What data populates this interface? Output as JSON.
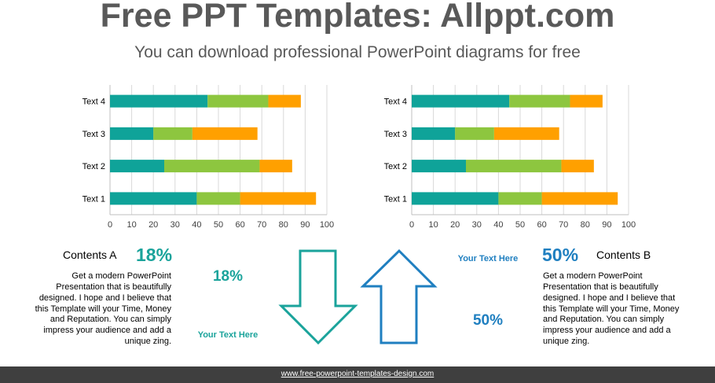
{
  "header": {
    "title": "Free PPT Templates: Allppt.com",
    "subtitle": "You can download professional PowerPoint diagrams for free"
  },
  "colors": {
    "series1": "#0fa399",
    "series2": "#8dc63f",
    "series3": "#ffa000",
    "teal": "#1aa39b",
    "blue": "#1f7fc0"
  },
  "chart_data": [
    {
      "type": "bar",
      "orientation": "horizontal",
      "stacked": true,
      "categories": [
        "Text 1",
        "Text 2",
        "Text 3",
        "Text 4"
      ],
      "series": [
        {
          "values": [
            40,
            25,
            20,
            45
          ]
        },
        {
          "values": [
            20,
            44,
            18,
            28
          ]
        },
        {
          "values": [
            35,
            15,
            30,
            15
          ]
        }
      ],
      "xlim": [
        0,
        100
      ],
      "xticks": [
        0,
        10,
        20,
        30,
        40,
        50,
        60,
        70,
        80,
        90,
        100
      ],
      "grid": true,
      "colors": [
        "#0fa399",
        "#8dc63f",
        "#ffa000"
      ]
    },
    {
      "type": "bar",
      "orientation": "horizontal",
      "stacked": true,
      "categories": [
        "Text 1",
        "Text 2",
        "Text 3",
        "Text 4"
      ],
      "series": [
        {
          "values": [
            40,
            25,
            20,
            45
          ]
        },
        {
          "values": [
            20,
            44,
            18,
            28
          ]
        },
        {
          "values": [
            35,
            15,
            30,
            15
          ]
        }
      ],
      "xlim": [
        0,
        100
      ],
      "xticks": [
        0,
        10,
        20,
        30,
        40,
        50,
        60,
        70,
        80,
        90,
        100
      ],
      "grid": true,
      "colors": [
        "#0fa399",
        "#8dc63f",
        "#ffa000"
      ]
    }
  ],
  "left_block": {
    "heading": "Contents A",
    "percent": "18%",
    "body_lines": [
      "Get a modern PowerPoint",
      "Presentation that is beautifully",
      "designed. I hope and I believe that",
      "this Template will your Time, Money",
      "and Reputation. You can simply",
      "impress your audience and add a",
      "unique zing."
    ]
  },
  "right_block": {
    "heading": "Contents B",
    "percent": "50%",
    "body_lines": [
      "Get a modern PowerPoint",
      "Presentation that is beautifully",
      "designed. I hope and I believe that",
      "this Template will your Time, Money",
      "and Reputation. You can simply",
      "impress your audience and add a",
      "unique zing."
    ]
  },
  "arrows": {
    "down_percent": "18%",
    "down_label": "Your Text  Here",
    "up_percent": "50%",
    "up_label": "Your Text  Here"
  },
  "footer": {
    "link": "www.free-powerpoint-templates-design.com"
  }
}
